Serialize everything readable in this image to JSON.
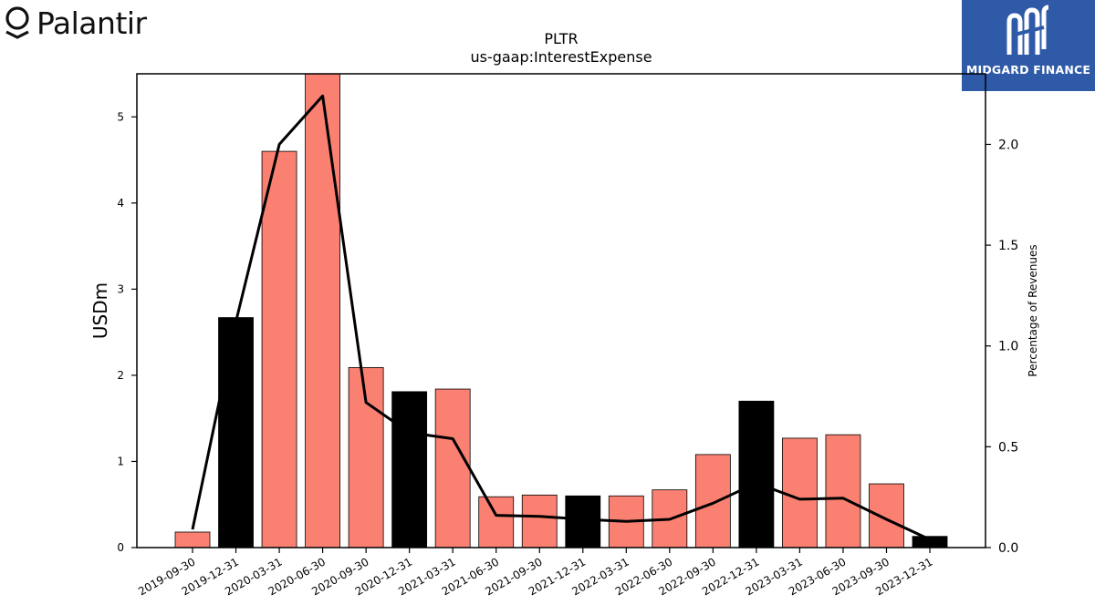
{
  "brand": {
    "name": "Palantir",
    "icon": "palantir-logo-icon"
  },
  "badge": {
    "name": "MIDGARD FINANCE",
    "icon": "midgard-logo-icon",
    "color": "#2f5aa8"
  },
  "chart_data": {
    "type": "bar",
    "title": "PLTR",
    "subtitle": "us-gaap:InterestExpense",
    "ylabel": "USDm",
    "y2label": "Percentage of Revenues",
    "ylim": [
      0,
      5.5
    ],
    "y2lim": [
      0,
      2.35
    ],
    "yticks": [
      "0",
      "1",
      "2",
      "3",
      "4",
      "5"
    ],
    "y2ticks": [
      "0.0",
      "0.5",
      "1.0",
      "1.5",
      "2.0"
    ],
    "categories": [
      "2019-09-30",
      "2019-12-31",
      "2020-03-31",
      "2020-06-30",
      "2020-09-30",
      "2020-12-31",
      "2021-03-31",
      "2021-06-30",
      "2021-09-30",
      "2021-12-31",
      "2022-03-31",
      "2022-06-30",
      "2022-09-30",
      "2022-12-31",
      "2023-03-31",
      "2023-06-30",
      "2023-09-30",
      "2023-12-31"
    ],
    "series": [
      {
        "type": "bar",
        "values": [
          0.18,
          2.67,
          4.6,
          5.5,
          2.09,
          1.81,
          1.84,
          0.59,
          0.61,
          0.6,
          0.6,
          0.67,
          1.08,
          1.7,
          1.27,
          1.31,
          0.74,
          0.13
        ]
      },
      {
        "type": "line",
        "axis": "right",
        "values": [
          0.09,
          1.12,
          2.0,
          2.24,
          0.72,
          0.57,
          0.54,
          0.16,
          0.155,
          0.14,
          0.13,
          0.14,
          0.22,
          0.32,
          0.24,
          0.245,
          0.14,
          0.04
        ]
      }
    ],
    "highlight_indices": [
      1,
      5,
      9,
      13,
      17
    ],
    "colors": {
      "bar": "#fa8072",
      "bar_highlight": "#000000",
      "line": "#000000"
    },
    "grid": false
  }
}
